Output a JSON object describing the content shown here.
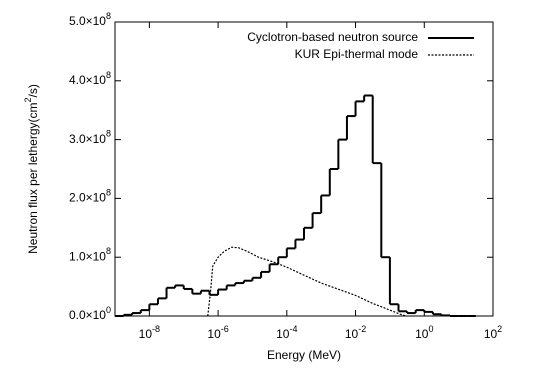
{
  "chart_data": {
    "type": "line",
    "xlabel": "Energy (MeV)",
    "ylabel": "Neutron flux per lethergy(cm^{2}/s)",
    "xscale": "log",
    "xlim": [
      1e-09,
      100
    ],
    "xticks": [
      {
        "value": 1e-08,
        "label": "10^{-8}"
      },
      {
        "value": 1e-06,
        "label": "10^{-6}"
      },
      {
        "value": 0.0001,
        "label": "10^{-4}"
      },
      {
        "value": 0.01,
        "label": "10^{-2}"
      },
      {
        "value": 1,
        "label": "10^{0}"
      },
      {
        "value": 100,
        "label": "10^{2}"
      }
    ],
    "ylim": [
      0,
      500000000
    ],
    "yticks": [
      {
        "value": 0,
        "label": "0.0×10^{0}"
      },
      {
        "value": 100000000,
        "label": "1.0×10^{8}"
      },
      {
        "value": 200000000,
        "label": "2.0×10^{8}"
      },
      {
        "value": 300000000,
        "label": "3.0×10^{8}"
      },
      {
        "value": 400000000,
        "label": "4.0×10^{8}"
      },
      {
        "value": 500000000,
        "label": "5.0×10^{8}"
      }
    ],
    "legend": "upper right",
    "series": [
      {
        "name": "Cyclotron-based neutron source",
        "color": "#000000",
        "style": "solid",
        "drawstyle": "steps",
        "bins": [
          1e-09,
          1.78e-09,
          3.16e-09,
          5.62e-09,
          1e-08,
          1.78e-08,
          3.16e-08,
          5.62e-08,
          1e-07,
          1.78e-07,
          3.16e-07,
          5.62e-07,
          1e-06,
          1.78e-06,
          3.16e-06,
          5.62e-06,
          1e-05,
          1.78e-05,
          3.16e-05,
          5.62e-05,
          0.0001,
          0.000178,
          0.000316,
          0.000562,
          0.001,
          0.00178,
          0.00316,
          0.00562,
          0.01,
          0.0178,
          0.0316,
          0.0562,
          0.1,
          0.178,
          0.316,
          0.562,
          1,
          1.78,
          3.16,
          5.62,
          10,
          17.8,
          31.6
        ],
        "values": [
          0,
          2000000,
          5000000,
          10000000,
          20000000,
          30000000,
          48000000,
          52000000,
          46000000,
          38000000,
          43000000,
          36000000,
          45000000,
          52000000,
          56000000,
          60000000,
          65000000,
          75000000,
          88000000,
          100000000,
          115000000,
          130000000,
          150000000,
          175000000,
          205000000,
          250000000,
          300000000,
          340000000,
          365000000,
          375000000,
          260000000,
          100000000,
          20000000,
          8000000,
          5000000,
          10000000,
          7000000,
          3000000,
          1000000,
          0,
          0,
          0
        ]
      },
      {
        "name": "KUR Epi-thermal mode",
        "color": "#000000",
        "style": "dotted",
        "x": [
          5e-07,
          6e-07,
          7e-07,
          1e-06,
          1.5e-06,
          2.5e-06,
          4e-06,
          7e-06,
          1.5e-05,
          4e-05,
          0.0001,
          0.0003,
          0.001,
          0.003,
          0.01,
          0.03,
          0.1,
          0.2,
          0.3
        ],
        "values": [
          0,
          40000000,
          85000000,
          100000000,
          110000000,
          117000000,
          116000000,
          110000000,
          100000000,
          92000000,
          83000000,
          70000000,
          56000000,
          46000000,
          35000000,
          22000000,
          10000000,
          3000000,
          0
        ]
      }
    ]
  }
}
